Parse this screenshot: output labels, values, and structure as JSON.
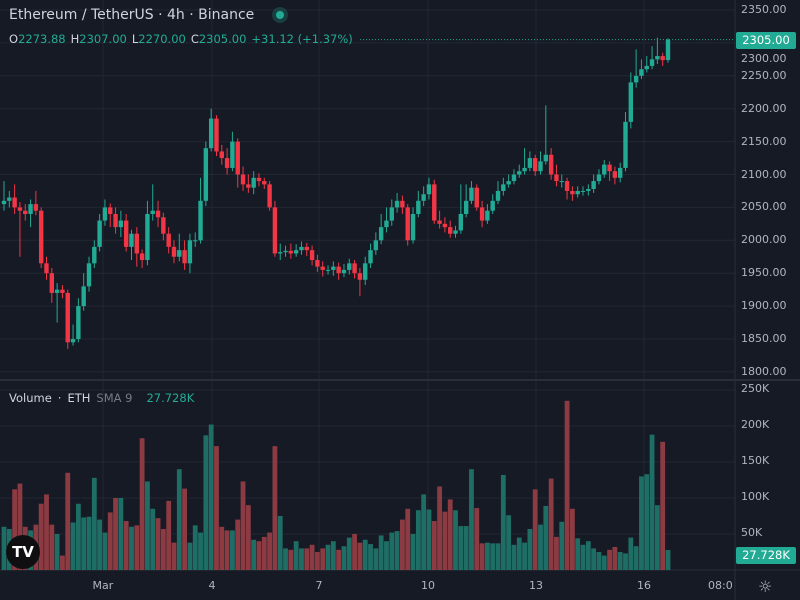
{
  "header": {
    "symbol_title": "Ethereum / TetherUS · 4h · Binance",
    "market_status": "open",
    "ohlc": {
      "o_label": "O",
      "o": "2273.88",
      "h_label": "H",
      "h": "2307.00",
      "l_label": "L",
      "l": "2270.00",
      "c_label": "C",
      "c": "2305.00",
      "change": "+31.12 (+1.37%)"
    }
  },
  "volume_legend": {
    "name": "Volume",
    "sep": "·",
    "unit": "ETH",
    "sma_label": "SMA 9",
    "value": "27.728K"
  },
  "price_axis": {
    "ticks": [
      "2350.00",
      "2300.00",
      "2250.00",
      "2200.00",
      "2150.00",
      "2100.00",
      "2050.00",
      "2000.00",
      "1950.00",
      "1900.00",
      "1850.00",
      "1800.00"
    ],
    "last_price": "2305.00"
  },
  "volume_axis": {
    "ticks": [
      "250K",
      "200K",
      "150K",
      "100K",
      "50K"
    ],
    "last_volume": "27.728K"
  },
  "time_axis": {
    "ticks": [
      "Mar",
      "4",
      "7",
      "10",
      "13",
      "16",
      "08:0"
    ]
  },
  "colors": {
    "background": "#161a25",
    "grid": "#232734",
    "up": "#22ab94",
    "down": "#f23645",
    "vol_up": "#1f6e66",
    "vol_down": "#8d3b43"
  },
  "logo": "TV",
  "chart_data": {
    "type": "candlestick",
    "symbol": "ETHUSDT",
    "interval": "4h",
    "ylim": [
      1800,
      2350
    ],
    "volume_ylim": [
      0,
      250000
    ],
    "grid": true,
    "open": [
      2055,
      2060,
      2065,
      2050,
      2045,
      2040,
      2055,
      2045,
      1965,
      1950,
      1920,
      1925,
      1920,
      1845,
      1850,
      1900,
      1930,
      1965,
      1990,
      2030,
      2050,
      2040,
      2020,
      2030,
      1990,
      2010,
      1980,
      1970,
      2040,
      2045,
      2035,
      2010,
      1990,
      1975,
      1985,
      1965,
      2000,
      2000,
      2060,
      2140,
      2185,
      2135,
      2125,
      2110,
      2150,
      2100,
      2085,
      2080,
      2095,
      2090,
      2085,
      2050,
      1980,
      1982,
      1984,
      1980,
      1985,
      1990,
      1985,
      1970,
      1960,
      1955,
      1955,
      1960,
      1950,
      1955,
      1965,
      1950,
      1940,
      1965,
      1985,
      2000,
      2020,
      2030,
      2050,
      2060,
      2050,
      2000,
      2040,
      2060,
      2070,
      2085,
      2030,
      2025,
      2020,
      2010,
      2015,
      2040,
      2060,
      2080,
      2050,
      2030,
      2045,
      2060,
      2075,
      2085,
      2090,
      2100,
      2105,
      2110,
      2125,
      2105,
      2120,
      2130,
      2100,
      2090,
      2090,
      2075,
      2070,
      2075,
      2075,
      2078,
      2090,
      2100,
      2115,
      2105,
      2095,
      2110,
      2180,
      2240,
      2250,
      2260,
      2265,
      2275,
      2280,
      2273.88
    ],
    "high": [
      2090,
      2075,
      2085,
      2058,
      2055,
      2062,
      2075,
      2050,
      1975,
      1958,
      1935,
      1932,
      1925,
      1872,
      1912,
      1950,
      1975,
      2000,
      2040,
      2062,
      2056,
      2050,
      2045,
      2040,
      2016,
      2020,
      1986,
      2060,
      2085,
      2060,
      2042,
      2020,
      2000,
      2010,
      2000,
      2010,
      2012,
      2095,
      2150,
      2200,
      2190,
      2145,
      2140,
      2165,
      2155,
      2112,
      2100,
      2105,
      2102,
      2095,
      2090,
      2060,
      1995,
      1992,
      1995,
      1994,
      1998,
      1996,
      1992,
      1978,
      1968,
      1962,
      1968,
      1966,
      1964,
      1972,
      1970,
      1958,
      1975,
      1995,
      2012,
      2040,
      2050,
      2062,
      2072,
      2068,
      2055,
      2050,
      2075,
      2082,
      2095,
      2092,
      2045,
      2035,
      2030,
      2022,
      2085,
      2085,
      2090,
      2085,
      2060,
      2055,
      2070,
      2090,
      2095,
      2100,
      2108,
      2115,
      2140,
      2135,
      2130,
      2135,
      2205,
      2140,
      2115,
      2100,
      2095,
      2082,
      2082,
      2082,
      2085,
      2100,
      2108,
      2122,
      2120,
      2112,
      2118,
      2195,
      2255,
      2290,
      2275,
      2280,
      2295,
      2308,
      2285,
      2307
    ],
    "low": [
      2045,
      2050,
      2040,
      1975,
      2030,
      2020,
      2038,
      1958,
      1940,
      1905,
      1875,
      1912,
      1835,
      1840,
      1845,
      1893,
      1922,
      1958,
      1983,
      2022,
      2020,
      2010,
      2005,
      1983,
      1970,
      1960,
      1958,
      1962,
      2030,
      2020,
      2000,
      1980,
      1965,
      1968,
      1955,
      1950,
      1990,
      1995,
      2052,
      2135,
      2128,
      2115,
      2100,
      2105,
      2080,
      2075,
      2072,
      2070,
      2082,
      2078,
      2045,
      1975,
      1970,
      1975,
      1972,
      1975,
      1978,
      1976,
      1962,
      1952,
      1945,
      1948,
      1946,
      1940,
      1944,
      1948,
      1942,
      1915,
      1932,
      1958,
      1978,
      1994,
      2012,
      2022,
      2042,
      2040,
      1992,
      1995,
      2035,
      2052,
      2062,
      2025,
      2018,
      2012,
      2004,
      2004,
      2010,
      2035,
      2055,
      2045,
      2020,
      2025,
      2040,
      2055,
      2068,
      2080,
      2085,
      2095,
      2100,
      2105,
      2098,
      2100,
      2115,
      2092,
      2082,
      2080,
      2062,
      2060,
      2065,
      2068,
      2068,
      2072,
      2085,
      2095,
      2090,
      2085,
      2088,
      2105,
      2170,
      2232,
      2245,
      2255,
      2260,
      2268,
      2265,
      2270
    ],
    "close": [
      2060,
      2065,
      2050,
      2045,
      2040,
      2055,
      2045,
      1965,
      1950,
      1920,
      1925,
      1920,
      1845,
      1850,
      1900,
      1930,
      1965,
      1990,
      2030,
      2050,
      2040,
      2020,
      2030,
      1990,
      2010,
      1980,
      1970,
      2040,
      2045,
      2035,
      2010,
      1990,
      1975,
      1985,
      1965,
      2000,
      2000,
      2060,
      2140,
      2185,
      2135,
      2125,
      2110,
      2150,
      2100,
      2085,
      2080,
      2095,
      2090,
      2085,
      2050,
      1980,
      1982,
      1984,
      1980,
      1985,
      1990,
      1985,
      1970,
      1960,
      1955,
      1955,
      1960,
      1950,
      1955,
      1965,
      1950,
      1940,
      1965,
      1985,
      2000,
      2020,
      2030,
      2050,
      2060,
      2050,
      2000,
      2040,
      2060,
      2070,
      2085,
      2030,
      2025,
      2020,
      2010,
      2015,
      2040,
      2060,
      2080,
      2050,
      2030,
      2045,
      2060,
      2075,
      2085,
      2090,
      2100,
      2105,
      2110,
      2125,
      2105,
      2120,
      2130,
      2100,
      2090,
      2090,
      2075,
      2070,
      2075,
      2075,
      2078,
      2090,
      2100,
      2115,
      2105,
      2095,
      2110,
      2180,
      2240,
      2250,
      2260,
      2265,
      2275,
      2280,
      2273.88,
      2305
    ],
    "volume_k": [
      60,
      57,
      112,
      120,
      60,
      55,
      63,
      92,
      105,
      63,
      50,
      20,
      135,
      66,
      92,
      73,
      74,
      128,
      70,
      52,
      80,
      100,
      100,
      68,
      60,
      62,
      183,
      123,
      85,
      72,
      57,
      96,
      38,
      140,
      113,
      38,
      62,
      52,
      187,
      202,
      172,
      60,
      55,
      55,
      70,
      123,
      90,
      42,
      40,
      46,
      52,
      172,
      75,
      30,
      28,
      40,
      30,
      30,
      35,
      25,
      30,
      35,
      40,
      28,
      33,
      45,
      50,
      38,
      42,
      36,
      30,
      48,
      40,
      52,
      54,
      70,
      85,
      50,
      83,
      105,
      84,
      68,
      116,
      81,
      98,
      83,
      61,
      61,
      140,
      86,
      37,
      38,
      37,
      37,
      132,
      76,
      35,
      45,
      38,
      57,
      112,
      63,
      89,
      127,
      46,
      67,
      235,
      85,
      44,
      35,
      40,
      30,
      25,
      20,
      28,
      32,
      25,
      23,
      45,
      33,
      130,
      133,
      188,
      90,
      178,
      27.728
    ]
  }
}
